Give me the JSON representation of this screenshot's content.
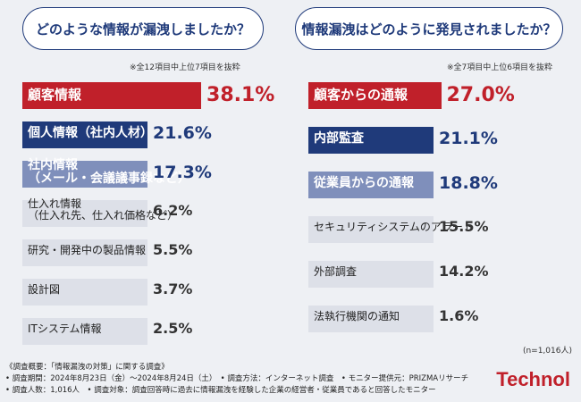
{
  "chart_data": [
    {
      "type": "bar",
      "title": "どのような情報が漏洩しましたか？",
      "note": "※全12項目中上位7項目を抜粋",
      "categories": [
        "顧客情報",
        "個人情報（社内人材）",
        "社内情報\n（メール・会議議事録など）",
        "仕入れ情報\n（仕入れ先、仕入れ価格など）",
        "研究・開発中の製品情報",
        "設計図",
        "ITシステム情報"
      ],
      "values": [
        38.1,
        21.6,
        17.3,
        6.2,
        5.5,
        3.7,
        2.5
      ],
      "value_labels": [
        "38.1%",
        "21.6%",
        "17.3%",
        "6.2%",
        "5.5%",
        "3.7%",
        "2.5%"
      ],
      "colors": [
        "#c0202a",
        "#1f3a7a",
        "#7f8fbb",
        "#dde0e8",
        "#dde0e8",
        "#dde0e8",
        "#dde0e8"
      ],
      "xlim": [
        0,
        40
      ]
    },
    {
      "type": "bar",
      "title": "情報漏洩はどのように発見されましたか？",
      "note": "※全7項目中上位6項目を抜粋",
      "categories": [
        "顧客からの通報",
        "内部監査",
        "従業員からの通報",
        "セキュリティシステムのアラート",
        "外部調査",
        "法執行機関の通知"
      ],
      "values": [
        27.0,
        21.1,
        18.8,
        15.5,
        14.2,
        1.6
      ],
      "value_labels": [
        "27.0%",
        "21.1%",
        "18.8%",
        "15.5%",
        "14.2%",
        "1.6%"
      ],
      "colors": [
        "#c0202a",
        "#1f3a7a",
        "#7f8fbb",
        "#dde0e8",
        "#dde0e8",
        "#dde0e8"
      ],
      "xlim": [
        0,
        40
      ]
    }
  ],
  "sample_size": "(n=1,016人)",
  "footer": {
    "line1": "《調査概要：「情報漏洩の対策」に関する調査》",
    "line2": "• 調査期間：2024年8月23日（金）〜2024年8月24日（土）　• 調査方法：インターネット調査　• モニター提供元：PRIZMAリサーチ",
    "line3": "• 調査人数：1,016人　• 調査対象：調査回答時に過去に情報漏洩を経験した企業の経営者・従業員であると回答したモニター"
  },
  "brand": "Technol"
}
